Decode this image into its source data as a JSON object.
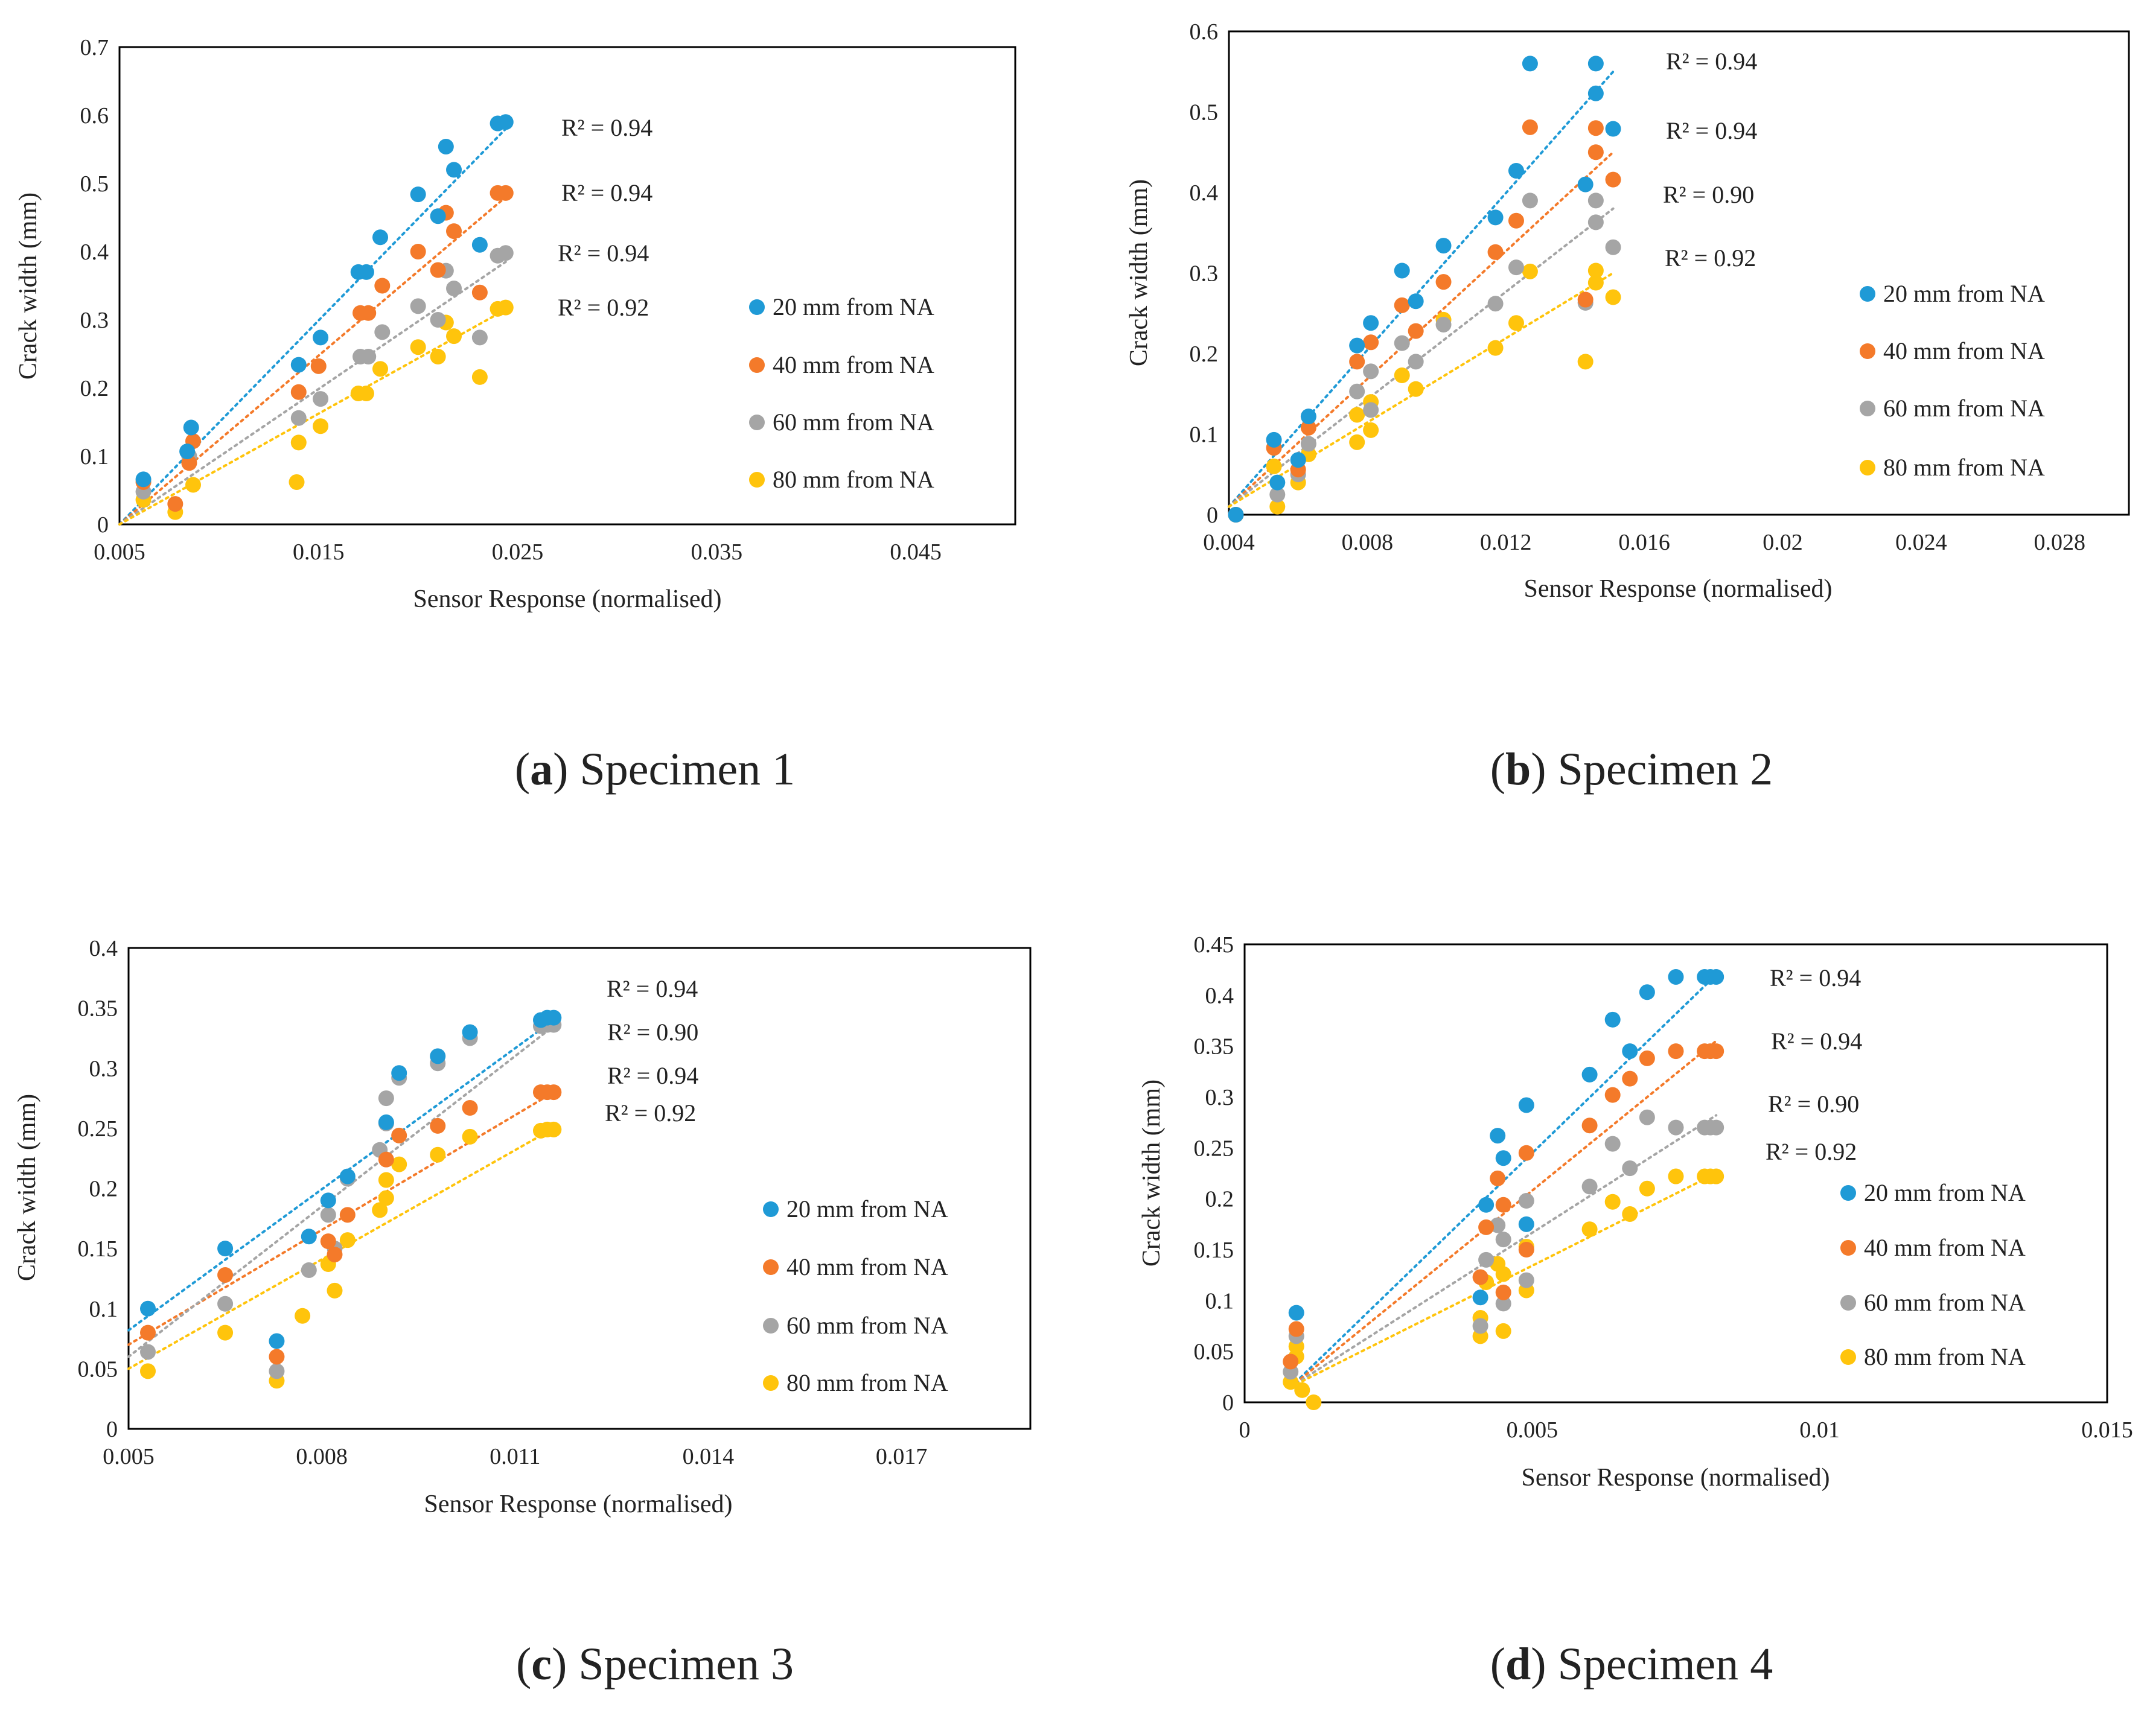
{
  "colors": {
    "s20": "#1f9ad6",
    "s40": "#f47a2a",
    "s60": "#a5a5a5",
    "s80": "#ffc40c"
  },
  "chart_data": [
    {
      "type": "scatter",
      "caption_letter": "a",
      "caption_text": " Specimen 1",
      "xlabel": "Sensor Response (normalised)",
      "ylabel": "Crack width (mm)",
      "xlim": [
        0.005,
        0.05
      ],
      "ylim": [
        0,
        0.7
      ],
      "xticks": [
        0.005,
        0.015,
        0.025,
        0.035,
        0.045
      ],
      "xtick_labels": [
        "0.005",
        "0.015",
        "0.025",
        "0.035",
        "0.045"
      ],
      "yticks": [
        0,
        0.1,
        0.2,
        0.3,
        0.4,
        0.5,
        0.6,
        0.7
      ],
      "ytick_labels": [
        "0",
        "0.1",
        "0.2",
        "0.3",
        "0.4",
        "0.5",
        "0.6",
        "0.7"
      ],
      "legend": [
        "20 mm from NA",
        "40 mm from NA",
        "60 mm from NA",
        "80 mm from NA"
      ],
      "r2_labels": [
        "R² = 0.94",
        "R² = 0.94",
        "R² = 0.94",
        "R² = 0.92"
      ],
      "series": [
        {
          "name": "20 mm from NA",
          "color_key": "s20",
          "x": [
            0.0062,
            0.0084,
            0.0086,
            0.014,
            0.0151,
            0.017,
            0.0174,
            0.0181,
            0.02,
            0.021,
            0.0214,
            0.0218,
            0.0231,
            0.024,
            0.0244
          ],
          "y": [
            0.066,
            0.107,
            0.142,
            0.234,
            0.274,
            0.37,
            0.37,
            0.421,
            0.484,
            0.452,
            0.554,
            0.52,
            0.41,
            0.588,
            0.59
          ],
          "trend": [
            [
              0.005,
              0.0
            ],
            [
              0.0244,
              0.58
            ]
          ]
        },
        {
          "name": "40 mm from NA",
          "color_key": "s40",
          "x": [
            0.0062,
            0.0078,
            0.0085,
            0.0087,
            0.014,
            0.015,
            0.0171,
            0.0175,
            0.0182,
            0.02,
            0.021,
            0.0214,
            0.0218,
            0.0231,
            0.024,
            0.0244
          ],
          "y": [
            0.062,
            0.03,
            0.09,
            0.122,
            0.194,
            0.232,
            0.31,
            0.31,
            0.35,
            0.4,
            0.373,
            0.457,
            0.43,
            0.34,
            0.486,
            0.486
          ],
          "trend": [
            [
              0.005,
              0.0
            ],
            [
              0.0244,
              0.48
            ]
          ]
        },
        {
          "name": "60 mm from NA",
          "color_key": "s60",
          "x": [
            0.0062,
            0.0085,
            0.014,
            0.0151,
            0.0171,
            0.0175,
            0.0182,
            0.02,
            0.021,
            0.0214,
            0.0218,
            0.0231,
            0.024,
            0.0244
          ],
          "y": [
            0.048,
            0.1,
            0.156,
            0.184,
            0.246,
            0.246,
            0.282,
            0.32,
            0.3,
            0.372,
            0.346,
            0.274,
            0.394,
            0.398
          ],
          "trend": [
            [
              0.005,
              0.0
            ],
            [
              0.0244,
              0.385
            ]
          ]
        },
        {
          "name": "80 mm from NA",
          "color_key": "s80",
          "x": [
            0.0062,
            0.0078,
            0.0087,
            0.0139,
            0.014,
            0.0151,
            0.017,
            0.0174,
            0.0181,
            0.02,
            0.021,
            0.0214,
            0.0218,
            0.0231,
            0.024,
            0.0244
          ],
          "y": [
            0.036,
            0.018,
            0.058,
            0.062,
            0.12,
            0.144,
            0.192,
            0.192,
            0.228,
            0.26,
            0.246,
            0.296,
            0.276,
            0.216,
            0.316,
            0.318
          ],
          "trend": [
            [
              0.005,
              0.0
            ],
            [
              0.0244,
              0.315
            ]
          ]
        }
      ]
    },
    {
      "type": "scatter",
      "caption_letter": "b",
      "caption_text": " Specimen 2",
      "xlabel": "Sensor Response (normalised)",
      "ylabel": "Crack width (mm)",
      "xlim": [
        0.004,
        0.03
      ],
      "ylim": [
        0,
        0.6
      ],
      "xticks": [
        0.004,
        0.008,
        0.012,
        0.016,
        0.02,
        0.024,
        0.028
      ],
      "xtick_labels": [
        "0.004",
        "0.008",
        "0.012",
        "0.016",
        "0.02",
        "0.024",
        "0.028"
      ],
      "yticks": [
        0,
        0.1,
        0.2,
        0.3,
        0.4,
        0.5,
        0.6
      ],
      "ytick_labels": [
        "0",
        "0.1",
        "0.2",
        "0.3",
        "0.4",
        "0.5",
        "0.6"
      ],
      "legend": [
        "20 mm from NA",
        "40 mm from NA",
        "60 mm from NA",
        "80 mm from NA"
      ],
      "r2_labels": [
        "R² = 0.94",
        "R² = 0.94",
        "R² = 0.90",
        "R² = 0.92"
      ],
      "series": [
        {
          "name": "20 mm from NA",
          "color_key": "s20",
          "x": [
            0.0042,
            0.0053,
            0.0054,
            0.006,
            0.0063,
            0.0077,
            0.0081,
            0.009,
            0.0094,
            0.0102,
            0.0117,
            0.0123,
            0.0127,
            0.0143,
            0.0146,
            0.0146,
            0.0151
          ],
          "y": [
            0.0,
            0.093,
            0.04,
            0.068,
            0.122,
            0.21,
            0.238,
            0.303,
            0.265,
            0.334,
            0.369,
            0.427,
            0.56,
            0.41,
            0.523,
            0.56,
            0.479
          ],
          "trend": [
            [
              0.004,
              0.01
            ],
            [
              0.0151,
              0.55
            ]
          ]
        },
        {
          "name": "40 mm from NA",
          "color_key": "s40",
          "x": [
            0.0042,
            0.0053,
            0.006,
            0.0063,
            0.0077,
            0.0081,
            0.009,
            0.0094,
            0.0102,
            0.0117,
            0.0123,
            0.0127,
            0.0143,
            0.0146,
            0.0146,
            0.0151
          ],
          "y": [
            0.0,
            0.083,
            0.056,
            0.108,
            0.19,
            0.214,
            0.26,
            0.228,
            0.289,
            0.326,
            0.365,
            0.481,
            0.267,
            0.45,
            0.48,
            0.416
          ],
          "trend": [
            [
              0.004,
              0.01
            ],
            [
              0.0151,
              0.45
            ]
          ]
        },
        {
          "name": "60 mm from NA",
          "color_key": "s60",
          "x": [
            0.0042,
            0.0054,
            0.006,
            0.0063,
            0.0077,
            0.0081,
            0.0081,
            0.009,
            0.0094,
            0.0102,
            0.0117,
            0.0123,
            0.0127,
            0.0143,
            0.0146,
            0.0146,
            0.0151
          ],
          "y": [
            0.0,
            0.025,
            0.05,
            0.088,
            0.153,
            0.178,
            0.13,
            0.213,
            0.19,
            0.236,
            0.262,
            0.307,
            0.39,
            0.263,
            0.363,
            0.39,
            0.332
          ],
          "trend": [
            [
              0.004,
              0.01
            ],
            [
              0.0151,
              0.38
            ]
          ]
        },
        {
          "name": "80 mm from NA",
          "color_key": "s80",
          "x": [
            0.0042,
            0.0053,
            0.0054,
            0.006,
            0.0063,
            0.0077,
            0.0077,
            0.0081,
            0.0081,
            0.009,
            0.0094,
            0.0102,
            0.0117,
            0.0123,
            0.0127,
            0.0143,
            0.0146,
            0.0146,
            0.0151
          ],
          "y": [
            0.0,
            0.06,
            0.01,
            0.04,
            0.075,
            0.124,
            0.09,
            0.14,
            0.105,
            0.173,
            0.156,
            0.242,
            0.207,
            0.238,
            0.302,
            0.19,
            0.288,
            0.303,
            0.27
          ],
          "trend": [
            [
              0.004,
              0.01
            ],
            [
              0.0151,
              0.3
            ]
          ]
        }
      ]
    },
    {
      "type": "scatter",
      "caption_letter": "c",
      "caption_text": " Specimen 3",
      "xlabel": "Sensor Response (normalised)",
      "ylabel": "Crack width (mm)",
      "xlim": [
        0.005,
        0.019
      ],
      "ylim": [
        0,
        0.4
      ],
      "xticks": [
        0.005,
        0.008,
        0.011,
        0.014,
        0.017
      ],
      "xtick_labels": [
        "0.005",
        "0.008",
        "0.011",
        "0.014",
        "0.017"
      ],
      "yticks": [
        0,
        0.05,
        0.1,
        0.15,
        0.2,
        0.25,
        0.3,
        0.35,
        0.4
      ],
      "ytick_labels": [
        "0",
        "0.05",
        "0.1",
        "0.15",
        "0.2",
        "0.25",
        "0.3",
        "0.35",
        "0.4"
      ],
      "legend": [
        "20 mm from NA",
        "40 mm from NA",
        "60 mm from NA",
        "80 mm from NA"
      ],
      "r2_labels": [
        "R² = 0.94",
        "R² = 0.90",
        "R² = 0.94",
        "R² = 0.92"
      ],
      "series": [
        {
          "name": "20 mm from NA",
          "color_key": "s20",
          "x": [
            0.0053,
            0.0065,
            0.0073,
            0.0078,
            0.0081,
            0.0084,
            0.009,
            0.0092,
            0.0098,
            0.0103,
            0.0114,
            0.0115,
            0.0116
          ],
          "y": [
            0.1,
            0.15,
            0.073,
            0.16,
            0.19,
            0.21,
            0.255,
            0.296,
            0.31,
            0.33,
            0.34,
            0.342,
            0.342
          ],
          "trend": [
            [
              0.005,
              0.082
            ],
            [
              0.0116,
              0.34
            ]
          ]
        },
        {
          "name": "40 mm from NA",
          "color_key": "s40",
          "x": [
            0.0053,
            0.0065,
            0.0073,
            0.0081,
            0.0082,
            0.0084,
            0.009,
            0.0092,
            0.0098,
            0.0103,
            0.0114,
            0.0115,
            0.0116
          ],
          "y": [
            0.08,
            0.128,
            0.06,
            0.156,
            0.145,
            0.178,
            0.224,
            0.244,
            0.252,
            0.267,
            0.28,
            0.28,
            0.28
          ],
          "trend": [
            [
              0.005,
              0.07
            ],
            [
              0.0116,
              0.28
            ]
          ]
        },
        {
          "name": "60 mm from NA",
          "color_key": "s60",
          "x": [
            0.0053,
            0.0065,
            0.0073,
            0.0078,
            0.0081,
            0.0082,
            0.0084,
            0.0089,
            0.009,
            0.009,
            0.0092,
            0.0098,
            0.0103,
            0.0114,
            0.0115,
            0.0116
          ],
          "y": [
            0.064,
            0.104,
            0.048,
            0.132,
            0.178,
            0.15,
            0.208,
            0.232,
            0.275,
            0.254,
            0.292,
            0.304,
            0.325,
            0.335,
            0.336,
            0.336
          ],
          "trend": [
            [
              0.005,
              0.06
            ],
            [
              0.0116,
              0.335
            ]
          ]
        },
        {
          "name": "80 mm from NA",
          "color_key": "s80",
          "x": [
            0.0053,
            0.0065,
            0.0073,
            0.0077,
            0.0081,
            0.0082,
            0.0084,
            0.0089,
            0.009,
            0.009,
            0.0092,
            0.0098,
            0.0103,
            0.0114,
            0.0115,
            0.0116
          ],
          "y": [
            0.048,
            0.08,
            0.04,
            0.094,
            0.137,
            0.115,
            0.157,
            0.182,
            0.207,
            0.192,
            0.22,
            0.228,
            0.243,
            0.248,
            0.249,
            0.249
          ],
          "trend": [
            [
              0.005,
              0.05
            ],
            [
              0.0116,
              0.25
            ]
          ]
        }
      ]
    },
    {
      "type": "scatter",
      "caption_letter": "d",
      "caption_text": " Specimen 4",
      "xlabel": "Sensor Response (normalised)",
      "ylabel": "Crack width (mm)",
      "xlim": [
        0,
        0.015
      ],
      "ylim": [
        0,
        0.45
      ],
      "xticks": [
        0,
        0.005,
        0.01,
        0.015
      ],
      "xtick_labels": [
        "0",
        "0.005",
        "0.01",
        "0.015"
      ],
      "yticks": [
        0,
        0.05,
        0.1,
        0.15,
        0.2,
        0.25,
        0.3,
        0.35,
        0.4,
        0.45
      ],
      "ytick_labels": [
        "0",
        "0.05",
        "0.1",
        "0.15",
        "0.2",
        "0.25",
        "0.3",
        "0.35",
        "0.4",
        "0.45"
      ],
      "legend": [
        "20 mm from NA",
        "40 mm from NA",
        "60 mm from NA",
        "80 mm from NA"
      ],
      "r2_labels": [
        "R² = 0.94",
        "R² = 0.94",
        "R² = 0.90",
        "R² = 0.92"
      ],
      "series": [
        {
          "name": "20 mm from NA",
          "color_key": "s20",
          "x": [
            0.0009,
            0.0041,
            0.0042,
            0.0044,
            0.0045,
            0.0049,
            0.0049,
            0.006,
            0.0064,
            0.0067,
            0.007,
            0.0075,
            0.008,
            0.0081,
            0.0082
          ],
          "y": [
            0.088,
            0.103,
            0.194,
            0.262,
            0.24,
            0.292,
            0.175,
            0.322,
            0.376,
            0.345,
            0.403,
            0.418,
            0.418,
            0.418,
            0.418
          ],
          "trend": [
            [
              0.0008,
              0.015
            ],
            [
              0.0082,
              0.42
            ]
          ]
        },
        {
          "name": "40 mm from NA",
          "color_key": "s40",
          "x": [
            0.0008,
            0.0009,
            0.0041,
            0.0042,
            0.0044,
            0.0045,
            0.0045,
            0.0049,
            0.0049,
            0.006,
            0.0064,
            0.0067,
            0.007,
            0.0075,
            0.008,
            0.0081,
            0.0082
          ],
          "y": [
            0.04,
            0.072,
            0.123,
            0.172,
            0.22,
            0.194,
            0.108,
            0.245,
            0.15,
            0.272,
            0.302,
            0.318,
            0.338,
            0.345,
            0.345,
            0.345,
            0.345
          ],
          "trend": [
            [
              0.0008,
              0.015
            ],
            [
              0.0082,
              0.355
            ]
          ]
        },
        {
          "name": "60 mm from NA",
          "color_key": "s60",
          "x": [
            0.0008,
            0.0009,
            0.0041,
            0.0042,
            0.0044,
            0.0045,
            0.0045,
            0.0049,
            0.0049,
            0.006,
            0.0064,
            0.0067,
            0.007,
            0.0075,
            0.008,
            0.0081,
            0.0082
          ],
          "y": [
            0.03,
            0.065,
            0.075,
            0.14,
            0.174,
            0.16,
            0.097,
            0.198,
            0.12,
            0.212,
            0.254,
            0.23,
            0.28,
            0.27,
            0.27,
            0.27,
            0.27
          ],
          "trend": [
            [
              0.0008,
              0.015
            ],
            [
              0.0082,
              0.282
            ]
          ]
        },
        {
          "name": "80 mm from NA",
          "color_key": "s80",
          "x": [
            0.0008,
            0.0009,
            0.0009,
            0.001,
            0.0012,
            0.0041,
            0.0041,
            0.0042,
            0.0044,
            0.0045,
            0.0045,
            0.0049,
            0.0049,
            0.006,
            0.0064,
            0.0067,
            0.007,
            0.0075,
            0.008,
            0.0081,
            0.0082
          ],
          "y": [
            0.02,
            0.055,
            0.045,
            0.012,
            0.0,
            0.065,
            0.083,
            0.118,
            0.136,
            0.126,
            0.07,
            0.153,
            0.11,
            0.17,
            0.197,
            0.185,
            0.21,
            0.222,
            0.222,
            0.222,
            0.222
          ],
          "trend": [
            [
              0.0008,
              0.015
            ],
            [
              0.0082,
              0.225
            ]
          ]
        }
      ]
    }
  ]
}
